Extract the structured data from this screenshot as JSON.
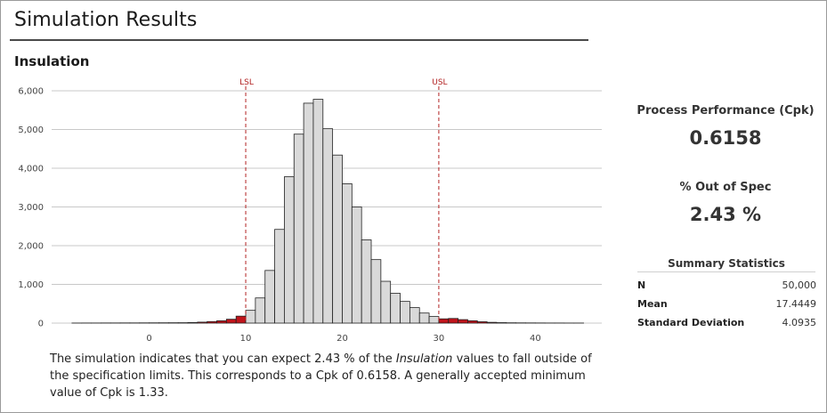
{
  "page": {
    "title": "Simulation Results",
    "summary": {
      "part1": "The simulation indicates that you can expect 2.43 % of the ",
      "variable": "Insulation",
      "part2": " values to fall outside of the specification limits. This corresponds to a Cpk of 0.6158. A generally accepted minimum value of Cpk is 1.33."
    }
  },
  "metrics": {
    "cpk_label": "Process Performance (Cpk)",
    "cpk_value": "0.6158",
    "out_of_spec_label": "% Out of Spec",
    "out_of_spec_value": "2.43 %"
  },
  "summary_statistics": {
    "title": "Summary Statistics",
    "rows": [
      {
        "label": "N",
        "value": "50,000"
      },
      {
        "label": "Mean",
        "value": "17.4449"
      },
      {
        "label": "Standard Deviation",
        "value": "4.0935"
      }
    ]
  },
  "colors": {
    "in_spec": "#d9d9d9",
    "out_of_spec": "#c0141b",
    "spec_line": "#b22222",
    "gridline": "#c8c8c8",
    "bar_stroke": "#222222"
  },
  "chart_data": {
    "type": "bar",
    "title": "Insulation",
    "xlabel": "",
    "ylabel": "",
    "x_ticks": [
      0,
      10,
      20,
      30,
      40
    ],
    "xlim": [
      -9,
      45.5
    ],
    "y_ticks": [
      0,
      1000,
      2000,
      3000,
      4000,
      5000,
      6000
    ],
    "y_tick_labels": [
      "0",
      "1,000",
      "2,000",
      "3,000",
      "4,000",
      "5,000",
      "6,000"
    ],
    "ylim": [
      0,
      6000
    ],
    "grid": true,
    "bin_width": 1,
    "bin_starts": [
      -8,
      -7,
      -6,
      -5,
      -4,
      -3,
      -2,
      -1,
      0,
      1,
      2,
      3,
      4,
      5,
      6,
      7,
      8,
      9,
      10,
      11,
      12,
      13,
      14,
      15,
      16,
      17,
      18,
      19,
      20,
      21,
      22,
      23,
      24,
      25,
      26,
      27,
      28,
      29,
      30,
      31,
      32,
      33,
      34,
      35,
      36,
      37,
      38,
      39,
      40,
      41,
      42,
      43,
      44
    ],
    "values": [
      2,
      3,
      3,
      4,
      4,
      5,
      5,
      6,
      7,
      8,
      9,
      10,
      15,
      25,
      40,
      60,
      100,
      180,
      330,
      650,
      1360,
      2420,
      3780,
      4880,
      5680,
      5780,
      5020,
      4340,
      3600,
      3000,
      2150,
      1640,
      1080,
      770,
      560,
      400,
      260,
      170,
      110,
      120,
      90,
      60,
      35,
      20,
      12,
      8,
      6,
      5,
      4,
      3,
      3,
      2,
      2
    ],
    "spec_limits": [
      {
        "label": "LSL",
        "value": 10
      },
      {
        "label": "USL",
        "value": 30
      }
    ]
  }
}
